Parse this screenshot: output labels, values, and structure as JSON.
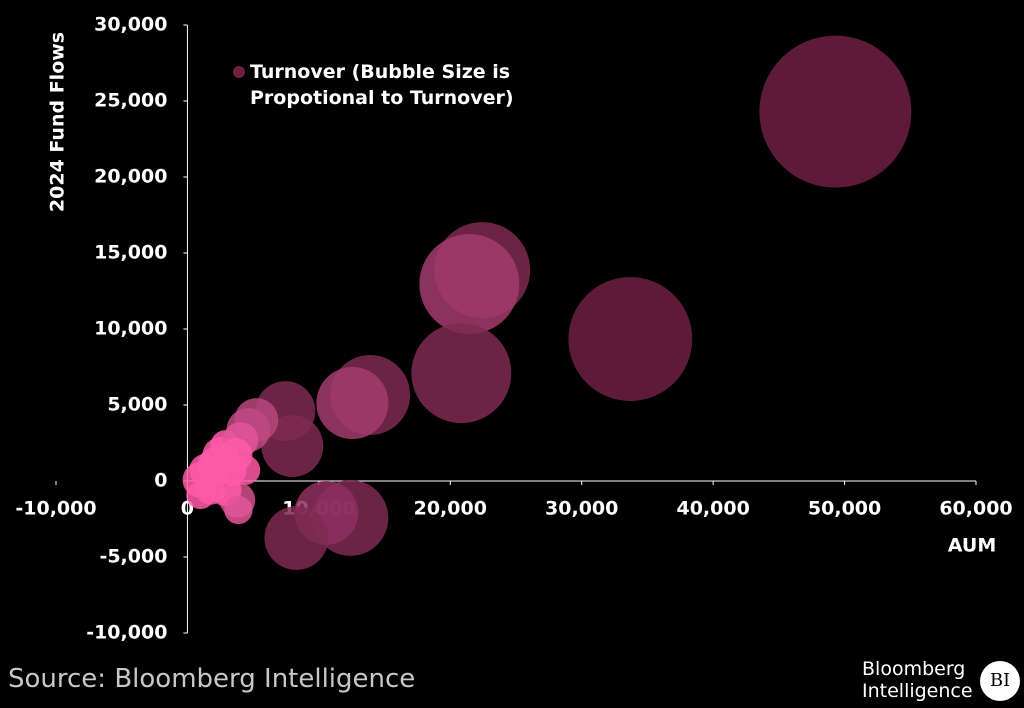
{
  "chart_data": {
    "type": "bubble",
    "y_label": "2024 Fund Flows",
    "x_label": "AUM",
    "source": "Source: Bloomberg Intelligence",
    "logo": {
      "line1": "Bloomberg",
      "line2": "Intelligence",
      "badge": "BI"
    },
    "xlim": [
      -10000,
      60000
    ],
    "ylim": [
      -10000,
      30000
    ],
    "xticks": [
      {
        "value": -10000,
        "label": "-10,000"
      },
      0,
      {
        "value": 10000,
        "label": "10,000"
      },
      {
        "value": 20000,
        "label": "20,000"
      },
      {
        "value": 30000,
        "label": "30,000"
      },
      {
        "value": 40000,
        "label": "40,000"
      },
      {
        "value": 50000,
        "label": "50,000"
      },
      {
        "value": 60000,
        "label": "60,000"
      }
    ],
    "yticks": [
      {
        "value": -10000,
        "label": "-10,000"
      },
      {
        "value": -5000,
        "label": "-5,000"
      },
      0,
      {
        "value": 5000,
        "label": "5,000"
      },
      {
        "value": 10000,
        "label": "10,000"
      },
      {
        "value": 15000,
        "label": "15,000"
      },
      {
        "value": 20000,
        "label": "20,000"
      },
      {
        "value": 25000,
        "label": "25,000"
      },
      {
        "value": 30000,
        "label": "30,000"
      }
    ],
    "opacity": 0.85,
    "series": [
      {
        "name": "Turnover (Bubble Size is Propotional to Turnover)",
        "color": "#6e2043",
        "x": [
          49300,
          33700,
          22430,
          21450,
          20840,
          13900,
          12550,
          12400,
          10570,
          8290,
          7980,
          7450,
          5250,
          4640,
          3800,
          990,
          1370,
          2130,
          2510,
          2890,
          3270,
          4030,
          990,
          1750,
          3650,
          4410,
          2890,
          3880
        ],
        "y": [
          24300,
          9340,
          13880,
          12960,
          7100,
          5660,
          5130,
          -2430,
          -2100,
          -3750,
          2300,
          4600,
          4010,
          3360,
          -1250,
          70,
          720,
          1050,
          1710,
          2370,
          720,
          2700,
          -920,
          -590,
          1710,
          720,
          -590,
          -1910
        ],
        "sizes": [
          578,
          384,
          230,
          250,
          250,
          160,
          130,
          144,
          102,
          102,
          96,
          90,
          48,
          48,
          32,
          32,
          26,
          32,
          32,
          22,
          26,
          32,
          20,
          22,
          29,
          22,
          26,
          20
        ],
        "colors": [
          "#6e2043",
          "#6e2043",
          "#7e2a52",
          "#a33c6e",
          "#7e2a52",
          "#7e2a52",
          "#a33c6e",
          "#7e2a52",
          "#8e3060",
          "#7e2a52",
          "#7e2a52",
          "#7e2a52",
          "#b8457c",
          "#c04a82",
          "#d04f8c",
          "#ff5aa8",
          "#ff5aa8",
          "#ff5aa8",
          "#ff5aa8",
          "#ff5aa8",
          "#ff5aa8",
          "#e3559a",
          "#ff5aa8",
          "#ff5aa8",
          "#ff5aa8",
          "#ff5aa8",
          "#ff5aa8",
          "#e3559a"
        ]
      }
    ]
  }
}
